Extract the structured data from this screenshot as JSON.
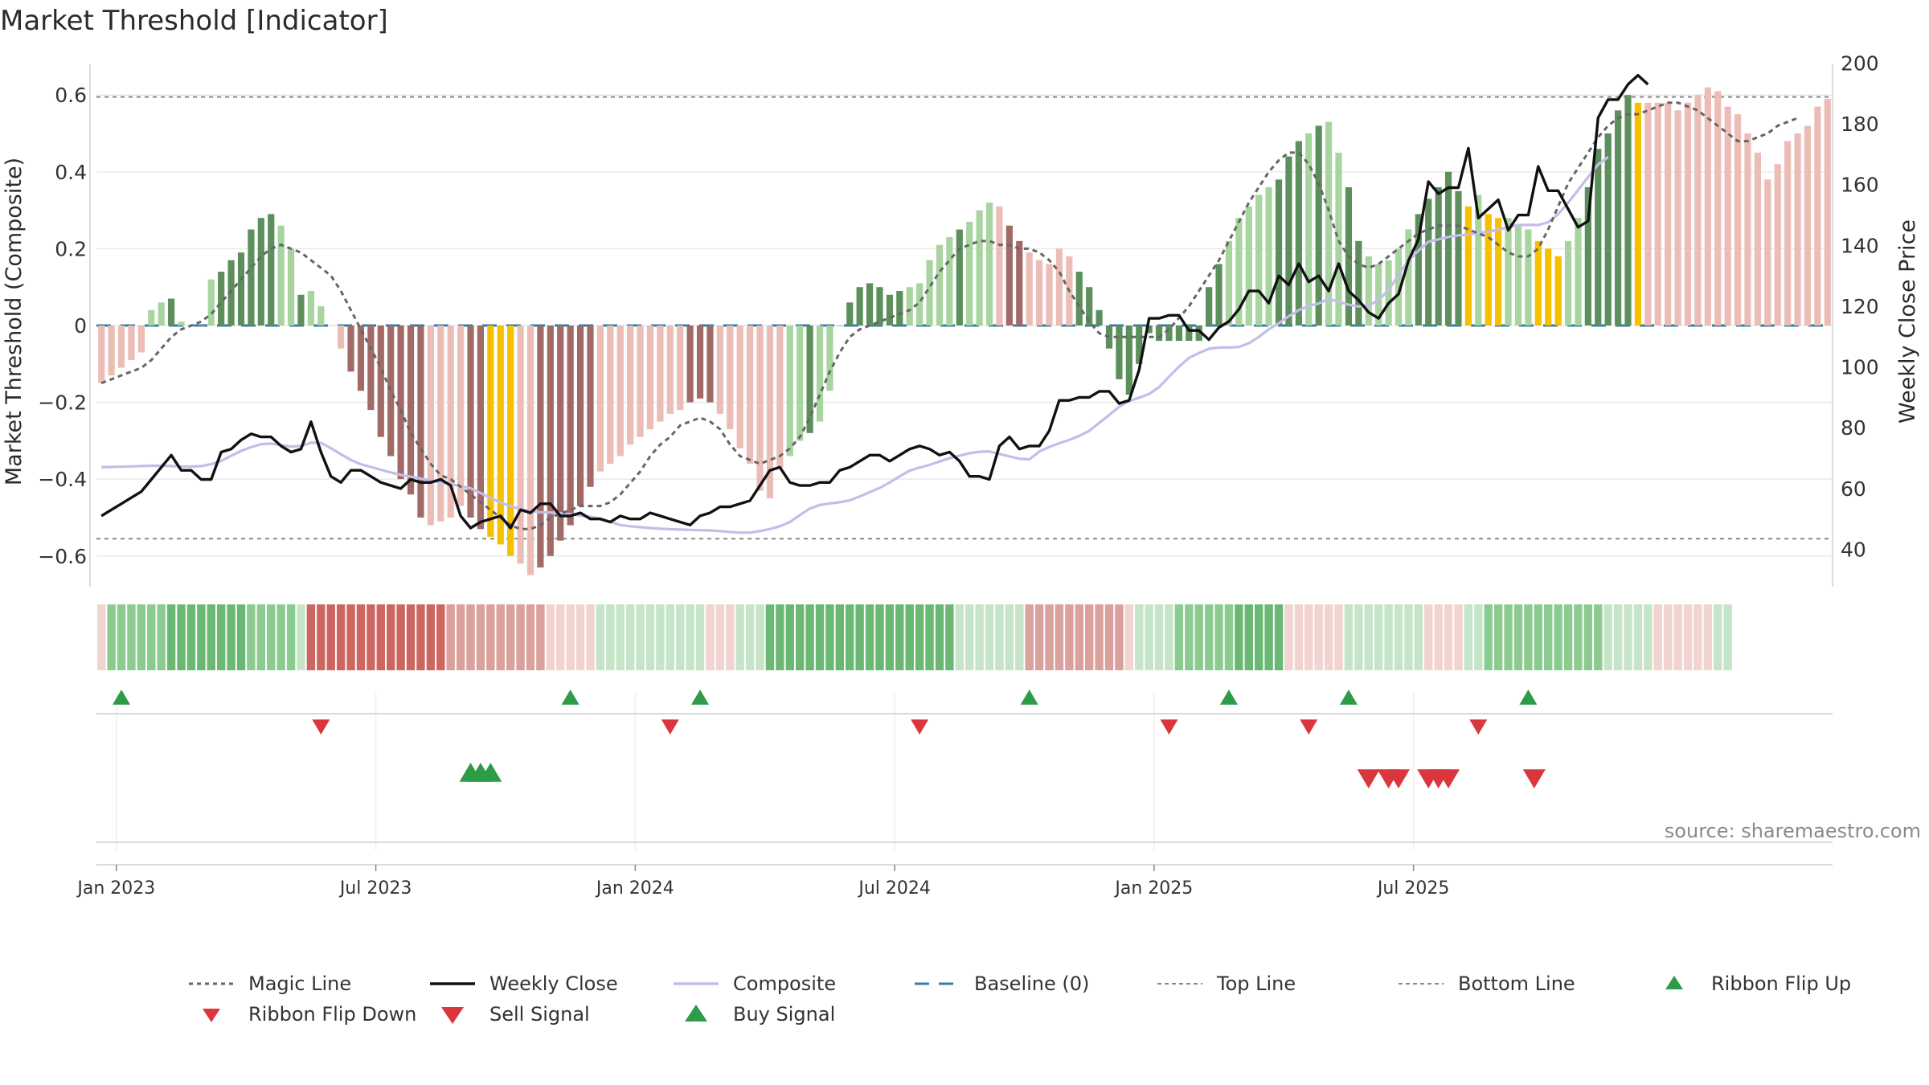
{
  "title": "Market Threshold [Indicator]",
  "source": "source: sharemaestro.com",
  "colors": {
    "bar_dark_green": "#5c8f5c",
    "bar_light_green": "#a8d4a0",
    "bar_dark_red": "#a16a66",
    "bar_light_red": "#ebbdb6",
    "bar_gold": "#f5c000",
    "weekly_close": "#111111",
    "composite": "#c3bde8",
    "magic_line": "#666666",
    "baseline": "#3a7ca5",
    "ref_line": "#888888",
    "up_marker": "#2e9c46",
    "down_marker": "#d9363e",
    "ribbon_green_strong": "#6ab874",
    "ribbon_green_light": "#c5e4c8",
    "ribbon_red_strong": "#cc6661",
    "ribbon_red_light": "#f1d3d0"
  },
  "chart_data": {
    "type": "bar",
    "ylabel": "Market Threshold (Composite)",
    "y2label": "Weekly Close Price",
    "ylim": [
      -0.68,
      0.68
    ],
    "y2lim": [
      27.7,
      199.6
    ],
    "yticks": [
      0.6,
      0.4,
      0.2,
      0,
      -0.2,
      -0.4,
      -0.6
    ],
    "ytick_labels": [
      "0.6",
      "0.4",
      "0.2",
      "0",
      "−0.2",
      "−0.4",
      "−0.6"
    ],
    "y2ticks": [
      200,
      180,
      160,
      140,
      120,
      100,
      80,
      60,
      40
    ],
    "xticks": [
      {
        "label": "Jan 2023",
        "week": 1.5
      },
      {
        "label": "Jul 2023",
        "week": 27.5
      },
      {
        "label": "Jan 2024",
        "week": 53.5
      },
      {
        "label": "Jul 2024",
        "week": 79.5
      },
      {
        "label": "Jan 2025",
        "week": 105.5
      },
      {
        "label": "Jul 2025",
        "week": 131.5
      }
    ],
    "top_line": 0.595,
    "bottom_line": -0.555,
    "composite": [
      -0.15,
      -0.13,
      -0.11,
      -0.09,
      -0.07,
      0.04,
      0.06,
      0.07,
      0.01,
      0,
      0,
      0.12,
      0.14,
      0.17,
      0.19,
      0.25,
      0.28,
      0.29,
      0.26,
      0.2,
      0.08,
      0.09,
      0.05,
      0,
      -0.06,
      -0.12,
      -0.17,
      -0.22,
      -0.29,
      -0.34,
      -0.4,
      -0.44,
      -0.5,
      -0.52,
      -0.51,
      -0.5,
      -0.47,
      -0.5,
      -0.53,
      -0.55,
      -0.57,
      -0.6,
      -0.62,
      -0.65,
      -0.63,
      -0.6,
      -0.56,
      -0.52,
      -0.47,
      -0.42,
      -0.38,
      -0.36,
      -0.34,
      -0.31,
      -0.29,
      -0.27,
      -0.25,
      -0.23,
      -0.22,
      -0.2,
      -0.19,
      -0.2,
      -0.23,
      -0.27,
      -0.32,
      -0.36,
      -0.43,
      -0.45,
      -0.37,
      -0.34,
      -0.3,
      -0.28,
      -0.25,
      -0.17,
      0,
      0.06,
      0.1,
      0.11,
      0.1,
      0.08,
      0.09,
      0.1,
      0.11,
      0.17,
      0.21,
      0.23,
      0.25,
      0.27,
      0.3,
      0.32,
      0.31,
      0.26,
      0.22,
      0.19,
      0.17,
      0.16,
      0.2,
      0.18,
      0.14,
      0.1,
      0.04,
      -0.06,
      -0.14,
      -0.18,
      -0.1,
      -0.02,
      -0.04,
      -0.04,
      -0.04,
      -0.04,
      -0.04,
      0.1,
      0.16,
      0.22,
      0.28,
      0.31,
      0.34,
      0.36,
      0.38,
      0.44,
      0.48,
      0.5,
      0.52,
      0.53,
      0.45,
      0.36,
      0.22,
      0.18,
      0.16,
      0.17,
      0.2,
      0.25,
      0.29,
      0.33,
      0.36,
      0.4,
      0.35,
      0.31,
      0.34,
      0.29,
      0.28,
      0.28,
      0.26,
      0.25,
      0.22,
      0.2,
      0.18,
      0.22,
      0.28,
      0.36,
      0.46,
      0.5,
      0.56,
      0.6,
      0.58,
      0.58,
      0.58,
      0.58,
      0.56,
      0.58,
      0.6,
      0.62,
      0.61,
      0.57,
      0.55,
      0.5,
      0.45,
      0.38,
      0.42,
      0.48,
      0.5,
      0.52,
      0.57,
      0.59
    ],
    "bar_tone": [
      "r",
      "r",
      "r",
      "r",
      "r",
      "g",
      "g",
      "G",
      "g",
      "g",
      "g",
      "g",
      "G",
      "G",
      "G",
      "G",
      "G",
      "G",
      "g",
      "g",
      "G",
      "g",
      "g",
      "r",
      "r",
      "R",
      "R",
      "R",
      "R",
      "R",
      "R",
      "R",
      "R",
      "r",
      "r",
      "r",
      "r",
      "R",
      "R",
      "Y",
      "Y",
      "Y",
      "r",
      "r",
      "R",
      "R",
      "R",
      "R",
      "R",
      "R",
      "r",
      "r",
      "r",
      "r",
      "r",
      "r",
      "r",
      "r",
      "r",
      "R",
      "R",
      "R",
      "r",
      "r",
      "r",
      "r",
      "r",
      "r",
      "r",
      "g",
      "g",
      "G",
      "g",
      "g",
      "G",
      "G",
      "G",
      "G",
      "G",
      "G",
      "G",
      "g",
      "g",
      "g",
      "g",
      "g",
      "G",
      "g",
      "g",
      "g",
      "r",
      "R",
      "R",
      "r",
      "r",
      "r",
      "r",
      "r",
      "G",
      "G",
      "G",
      "G",
      "G",
      "G",
      "G",
      "G",
      "G",
      "G",
      "G",
      "G",
      "G",
      "G",
      "G",
      "g",
      "g",
      "g",
      "g",
      "g",
      "G",
      "G",
      "G",
      "g",
      "G",
      "g",
      "g",
      "G",
      "G",
      "g",
      "g",
      "g",
      "g",
      "g",
      "G",
      "G",
      "G",
      "G",
      "G",
      "Y",
      "g",
      "Y",
      "Y",
      "g",
      "g",
      "g",
      "Y",
      "Y",
      "Y",
      "g",
      "g",
      "G",
      "G",
      "G",
      "G",
      "G",
      "Y"
    ],
    "magic_line": [
      -0.15,
      -0.14,
      -0.13,
      -0.12,
      -0.11,
      -0.09,
      -0.06,
      -0.03,
      -0.01,
      0,
      0.01,
      0.03,
      0.06,
      0.09,
      0.12,
      0.15,
      0.18,
      0.2,
      0.21,
      0.2,
      0.19,
      0.17,
      0.15,
      0.13,
      0.09,
      0.04,
      -0.01,
      -0.06,
      -0.11,
      -0.17,
      -0.22,
      -0.28,
      -0.32,
      -0.36,
      -0.39,
      -0.4,
      -0.42,
      -0.44,
      -0.46,
      -0.48,
      -0.5,
      -0.52,
      -0.53,
      -0.53,
      -0.52,
      -0.5,
      -0.49,
      -0.48,
      -0.47,
      -0.47,
      -0.47,
      -0.46,
      -0.44,
      -0.41,
      -0.38,
      -0.34,
      -0.31,
      -0.29,
      -0.26,
      -0.25,
      -0.24,
      -0.25,
      -0.27,
      -0.31,
      -0.34,
      -0.35,
      -0.36,
      -0.35,
      -0.34,
      -0.32,
      -0.29,
      -0.24,
      -0.18,
      -0.12,
      -0.07,
      -0.03,
      -0.01,
      0,
      0.01,
      0.02,
      0.03,
      0.04,
      0.06,
      0.1,
      0.14,
      0.17,
      0.2,
      0.21,
      0.22,
      0.22,
      0.21,
      0.21,
      0.2,
      0.2,
      0.19,
      0.17,
      0.14,
      0.09,
      0.05,
      0.01,
      -0.02,
      -0.03,
      -0.03,
      -0.03,
      -0.03,
      -0.03,
      -0.03,
      -0.01,
      0.02,
      0.05,
      0.09,
      0.13,
      0.17,
      0.22,
      0.27,
      0.32,
      0.36,
      0.4,
      0.43,
      0.45,
      0.45,
      0.42,
      0.37,
      0.3,
      0.22,
      0.18,
      0.16,
      0.15,
      0.16,
      0.18,
      0.2,
      0.22,
      0.24,
      0.25,
      0.26,
      0.26,
      0.26,
      0.25,
      0.24,
      0.23,
      0.21,
      0.19,
      0.18,
      0.18,
      0.2,
      0.25,
      0.31,
      0.37,
      0.41,
      0.45,
      0.49,
      0.52,
      0.54,
      0.55,
      0.55,
      0.56,
      0.57,
      0.58,
      0.58,
      0.57,
      0.56,
      0.54,
      0.52,
      0.5,
      0.48,
      0.48,
      0.49,
      0.5,
      0.52,
      0.53,
      0.54
    ],
    "weekly_close": [
      51,
      53,
      55,
      57,
      59,
      63,
      67,
      71,
      66,
      66,
      63,
      63,
      72,
      73,
      76,
      78,
      77,
      77,
      74,
      72,
      73,
      82,
      72,
      64,
      62,
      66,
      66,
      64,
      62,
      61,
      60,
      63,
      62,
      62,
      63,
      61,
      51,
      47,
      49,
      50,
      51,
      47,
      53,
      52,
      55,
      55,
      51,
      51,
      52,
      50,
      50,
      49,
      51,
      50,
      50,
      52,
      51,
      50,
      49,
      48,
      51,
      52,
      54,
      54,
      55,
      56,
      61,
      66,
      67,
      62,
      61,
      61,
      62,
      62,
      66,
      67,
      69,
      71,
      71,
      69,
      71,
      73,
      74,
      73,
      71,
      72,
      69,
      64,
      64,
      63,
      74,
      77,
      73,
      74,
      74,
      79,
      89,
      89,
      90,
      90,
      92,
      92,
      88,
      89,
      99,
      116,
      116,
      117,
      117,
      112,
      112,
      109,
      113,
      115,
      119,
      125,
      125,
      121,
      130,
      127,
      134,
      128,
      130,
      125,
      134,
      125,
      122,
      118,
      116,
      121,
      124,
      135,
      142,
      161,
      157,
      159,
      159,
      172,
      149,
      152,
      155,
      145,
      150,
      150,
      166,
      158,
      158,
      152,
      146,
      148,
      182,
      188,
      188,
      193,
      196,
      193
    ],
    "composite_line": [
      67,
      67.1,
      67.2,
      67.3,
      67.4,
      67.5,
      67.5,
      67.4,
      67.3,
      67.2,
      67.4,
      68,
      69.1,
      70.8,
      72.4,
      73.6,
      74.6,
      74.8,
      74.3,
      73.8,
      74,
      75.1,
      75,
      73.3,
      71.3,
      69.4,
      68,
      67.1,
      66.2,
      65.3,
      64.5,
      63.9,
      63.3,
      62.6,
      62.1,
      61.5,
      60.8,
      60.1,
      58.5,
      56.9,
      55.4,
      54.2,
      53.2,
      52.5,
      52.2,
      52.1,
      51.9,
      51.6,
      51.1,
      50.7,
      50.1,
      49,
      48,
      47.6,
      47.3,
      47,
      46.8,
      46.6,
      46.5,
      46.4,
      46.3,
      46.2,
      46,
      45.7,
      45.5,
      45.5,
      46,
      46.7,
      47.6,
      49,
      51.3,
      53.4,
      54.6,
      55.1,
      55.5,
      56.1,
      57.4,
      58.8,
      60.2,
      62,
      64,
      65.9,
      66.9,
      67.8,
      68.9,
      70,
      70.8,
      71.6,
      72.1,
      72.2,
      71.4,
      70.6,
      69.8,
      69.6,
      72.2,
      73.7,
      74.9,
      76,
      77.3,
      79,
      81.6,
      84.2,
      86.9,
      88.8,
      89.9,
      91.1,
      93.4,
      96.8,
      100.1,
      103,
      104.6,
      106,
      106.4,
      106.4,
      106.6,
      107.8,
      109.9,
      112.4,
      114.4,
      116.7,
      118.7,
      120.1,
      120.9,
      122.4,
      121.5,
      120.5,
      119.9,
      120.2,
      122,
      125.3,
      130.3,
      135,
      138.3,
      141.2,
      142,
      142.8,
      143.3,
      143.6,
      144.1,
      144.5,
      145.2,
      146,
      146.7,
      146.8,
      146.7,
      147.6,
      150.3,
      154,
      158.2,
      162.5,
      166.6,
      169.1
    ]
  },
  "ribbon": {
    "tone": [
      "rl",
      "g",
      "g",
      "g",
      "g",
      "g",
      "g",
      "G",
      "G",
      "G",
      "G",
      "G",
      "G",
      "G",
      "G",
      "g",
      "g",
      "g",
      "g",
      "g",
      "gl",
      "R",
      "R",
      "R",
      "R",
      "R",
      "R",
      "R",
      "R",
      "R",
      "R",
      "R",
      "R",
      "R",
      "R",
      "r",
      "r",
      "r",
      "r",
      "r",
      "r",
      "r",
      "r",
      "r",
      "r",
      "rl",
      "rl",
      "rl",
      "rl",
      "rl",
      "gl",
      "gl",
      "gl",
      "gl",
      "gl",
      "gl",
      "gl",
      "gl",
      "gl",
      "gl",
      "gl",
      "rl",
      "rl",
      "rl",
      "gl",
      "gl",
      "gl",
      "G",
      "G",
      "G",
      "G",
      "G",
      "G",
      "G",
      "G",
      "G",
      "G",
      "G",
      "G",
      "G",
      "G",
      "G",
      "G",
      "G",
      "G",
      "G",
      "gl",
      "gl",
      "gl",
      "gl",
      "gl",
      "gl",
      "gl",
      "r",
      "r",
      "r",
      "r",
      "r",
      "r",
      "r",
      "r",
      "r",
      "r",
      "rl",
      "gl",
      "gl",
      "gl",
      "gl",
      "g",
      "g",
      "g",
      "g",
      "g",
      "g",
      "G",
      "G",
      "G",
      "G",
      "G",
      "rl",
      "rl",
      "rl",
      "rl",
      "rl",
      "rl",
      "gl",
      "gl",
      "gl",
      "gl",
      "gl",
      "gl",
      "gl",
      "gl",
      "rl",
      "rl",
      "rl",
      "rl",
      "gl",
      "gl",
      "g",
      "g",
      "g",
      "g",
      "g",
      "g",
      "g",
      "g",
      "g",
      "g",
      "g",
      "g",
      "gl",
      "gl",
      "gl",
      "gl",
      "gl",
      "rl",
      "rl",
      "rl",
      "rl",
      "rl",
      "rl",
      "gl",
      "gl"
    ]
  },
  "signals": {
    "ribbon_flip_up": [
      2,
      47,
      60,
      93,
      113,
      125,
      143
    ],
    "ribbon_flip_down": [
      22,
      57,
      82,
      107,
      121,
      138
    ],
    "buy_signal": [
      37,
      38,
      39
    ],
    "sell_signal": [
      127,
      129,
      130,
      133,
      134,
      135,
      143.6
    ]
  },
  "legend": [
    {
      "label": "Magic Line",
      "kind": "dotted-gray"
    },
    {
      "label": "Weekly Close",
      "kind": "solid-black"
    },
    {
      "label": "Composite",
      "kind": "solid-lavender"
    },
    {
      "label": "Baseline (0)",
      "kind": "dashed-blue"
    },
    {
      "label": "Top Line",
      "kind": "dotted-light"
    },
    {
      "label": "Bottom Line",
      "kind": "dotted-light"
    },
    {
      "label": "Ribbon Flip Up",
      "kind": "triangle-up-green"
    },
    {
      "label": "Ribbon Flip Down",
      "kind": "triangle-down-red"
    },
    {
      "label": "Sell Signal",
      "kind": "triangle-down-red-large"
    },
    {
      "label": "Buy Signal",
      "kind": "triangle-up-green-large"
    }
  ]
}
